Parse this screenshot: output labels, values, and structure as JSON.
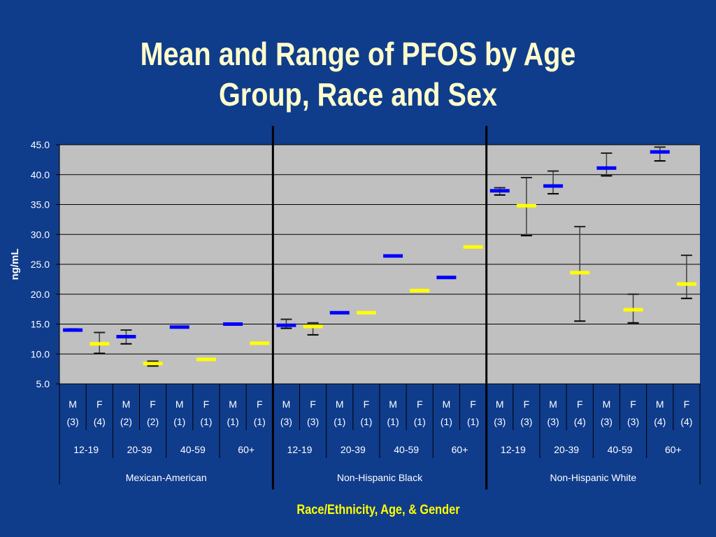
{
  "title": {
    "line1": "Mean and Range of PFOS by Age",
    "line2": "Group, Race and Sex"
  },
  "colors": {
    "background": "#103c8c",
    "plot_area": "#c0c0c0",
    "male": "#0000ff",
    "female": "#ffff00",
    "title": "#ffffcc"
  },
  "chart_data": {
    "type": "error-bar",
    "title": "Mean and Range of PFOS by Age Group, Race and Sex",
    "ylabel": "ng/mL",
    "xlabel": "Race/Ethnicity, Age, & Gender",
    "ylim": [
      5.0,
      45.0
    ],
    "ytick_labels": [
      "5.0",
      "10.0",
      "15.0",
      "20.0",
      "25.0",
      "30.0",
      "35.0",
      "40.0",
      "45.0"
    ],
    "grid": true,
    "groups": [
      {
        "name": "Mexican-American",
        "ages": [
          {
            "age": "12-19",
            "items": [
              {
                "sex": "M",
                "n": "(3)",
                "mean": 14.0,
                "min": 13.9,
                "max": 14.2
              },
              {
                "sex": "F",
                "n": "(4)",
                "mean": 11.7,
                "min": 10.1,
                "max": 13.6
              }
            ]
          },
          {
            "age": "20-39",
            "items": [
              {
                "sex": "M",
                "n": "(2)",
                "mean": 12.9,
                "min": 11.7,
                "max": 14.0
              },
              {
                "sex": "F",
                "n": "(2)",
                "mean": 8.4,
                "min": 8.0,
                "max": 8.8
              }
            ]
          },
          {
            "age": "40-59",
            "items": [
              {
                "sex": "M",
                "n": "(1)",
                "mean": 14.5,
                "min": null,
                "max": null
              },
              {
                "sex": "F",
                "n": "(1)",
                "mean": 9.1,
                "min": null,
                "max": null
              }
            ]
          },
          {
            "age": "60+",
            "items": [
              {
                "sex": "M",
                "n": "(1)",
                "mean": 15.0,
                "min": null,
                "max": null
              },
              {
                "sex": "F",
                "n": "(1)",
                "mean": 11.8,
                "min": null,
                "max": null
              }
            ]
          }
        ]
      },
      {
        "name": "Non-Hispanic Black",
        "ages": [
          {
            "age": "12-19",
            "items": [
              {
                "sex": "M",
                "n": "(3)",
                "mean": 14.8,
                "min": 14.3,
                "max": 15.8
              },
              {
                "sex": "F",
                "n": "(3)",
                "mean": 14.6,
                "min": 13.2,
                "max": 15.2
              }
            ]
          },
          {
            "age": "20-39",
            "items": [
              {
                "sex": "M",
                "n": "(1)",
                "mean": 16.9,
                "min": null,
                "max": null
              },
              {
                "sex": "F",
                "n": "(1)",
                "mean": 16.9,
                "min": null,
                "max": null
              }
            ]
          },
          {
            "age": "40-59",
            "items": [
              {
                "sex": "M",
                "n": "(1)",
                "mean": 26.4,
                "min": null,
                "max": null
              },
              {
                "sex": "F",
                "n": "(1)",
                "mean": 20.6,
                "min": null,
                "max": null
              }
            ]
          },
          {
            "age": "60+",
            "items": [
              {
                "sex": "M",
                "n": "(1)",
                "mean": 22.8,
                "min": null,
                "max": null
              },
              {
                "sex": "F",
                "n": "(1)",
                "mean": 27.9,
                "min": null,
                "max": null
              }
            ]
          }
        ]
      },
      {
        "name": "Non-Hispanic White",
        "ages": [
          {
            "age": "12-19",
            "items": [
              {
                "sex": "M",
                "n": "(3)",
                "mean": 37.3,
                "min": 36.6,
                "max": 37.8
              },
              {
                "sex": "F",
                "n": "(3)",
                "mean": 34.8,
                "min": 29.8,
                "max": 39.5
              }
            ]
          },
          {
            "age": "20-39",
            "items": [
              {
                "sex": "M",
                "n": "(3)",
                "mean": 38.1,
                "min": 36.8,
                "max": 40.6
              },
              {
                "sex": "F",
                "n": "(4)",
                "mean": 23.6,
                "min": 15.5,
                "max": 31.3
              }
            ]
          },
          {
            "age": "40-59",
            "items": [
              {
                "sex": "M",
                "n": "(3)",
                "mean": 41.1,
                "min": 39.8,
                "max": 43.6
              },
              {
                "sex": "F",
                "n": "(3)",
                "mean": 17.4,
                "min": 15.2,
                "max": 20.0
              }
            ]
          },
          {
            "age": "60+",
            "items": [
              {
                "sex": "M",
                "n": "(4)",
                "mean": 43.8,
                "min": 42.3,
                "max": 44.6
              },
              {
                "sex": "F",
                "n": "(4)",
                "mean": 21.7,
                "min": 19.3,
                "max": 26.5
              }
            ]
          }
        ]
      }
    ]
  }
}
